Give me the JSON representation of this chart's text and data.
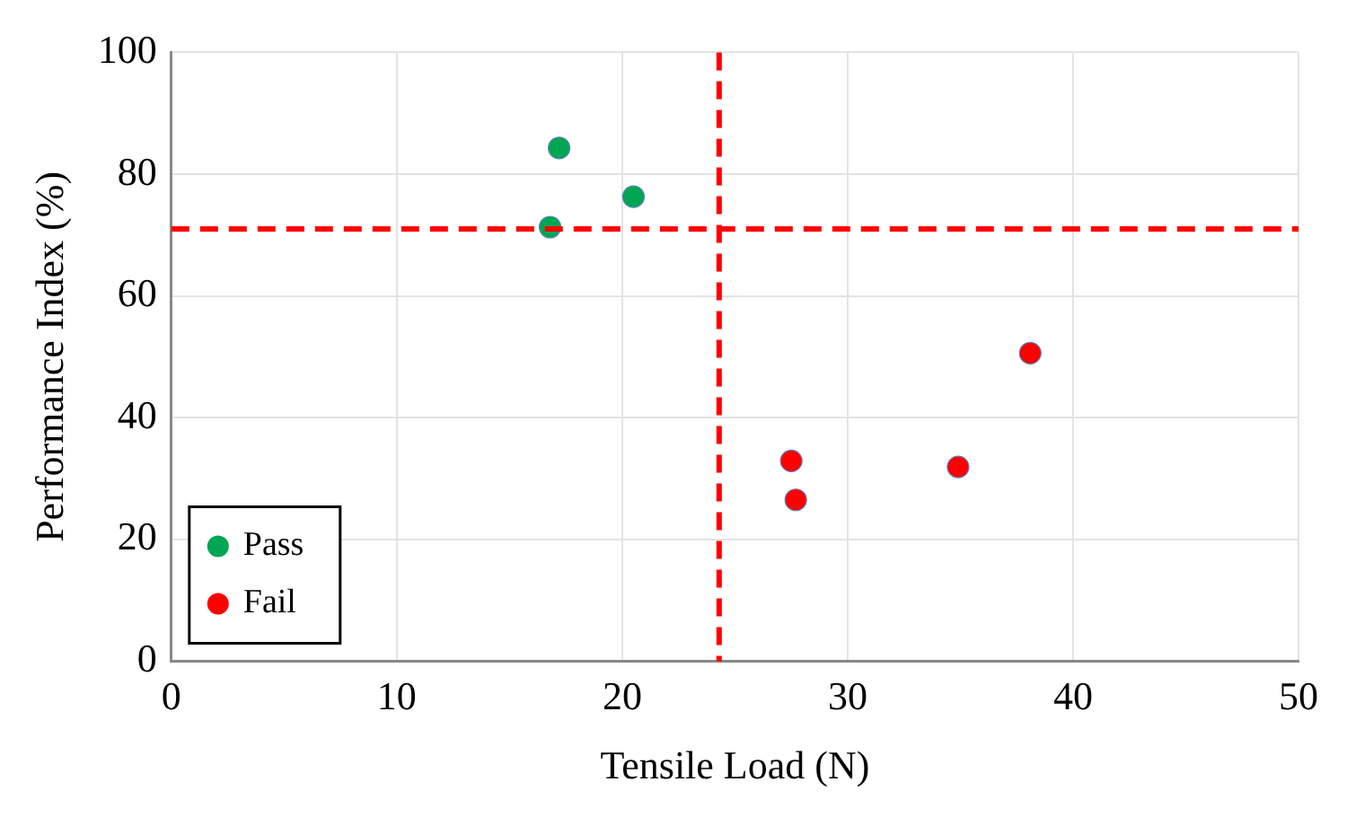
{
  "chart_data": {
    "type": "scatter",
    "xlabel": "Tensile Load (N)",
    "ylabel": "Performance Index (%)",
    "xlim": [
      0,
      50
    ],
    "xticks": [
      0,
      10,
      20,
      30,
      40,
      50
    ],
    "ylim": [
      0,
      100
    ],
    "yticks": [
      0,
      20,
      40,
      60,
      80,
      100
    ],
    "grid": true,
    "legend": "bottom left",
    "marker": "circle",
    "series": [
      {
        "name": "Pass",
        "color": "#00a651",
        "x": [
          17.2,
          16.8,
          20.5
        ],
        "values": [
          84.3,
          71.3,
          76.3
        ]
      },
      {
        "name": "Fail",
        "color": "#ff0000",
        "x": [
          27.5,
          27.7,
          34.9,
          38.1
        ],
        "values": [
          32.9,
          26.5,
          31.9,
          50.6
        ]
      }
    ],
    "ref_lines": [
      {
        "axis": "x",
        "value": 24.3,
        "color": "#ff0000",
        "line_style": "dashed"
      },
      {
        "axis": "y",
        "value": 71,
        "color": "#ff0000",
        "line_style": "dashed"
      }
    ]
  }
}
